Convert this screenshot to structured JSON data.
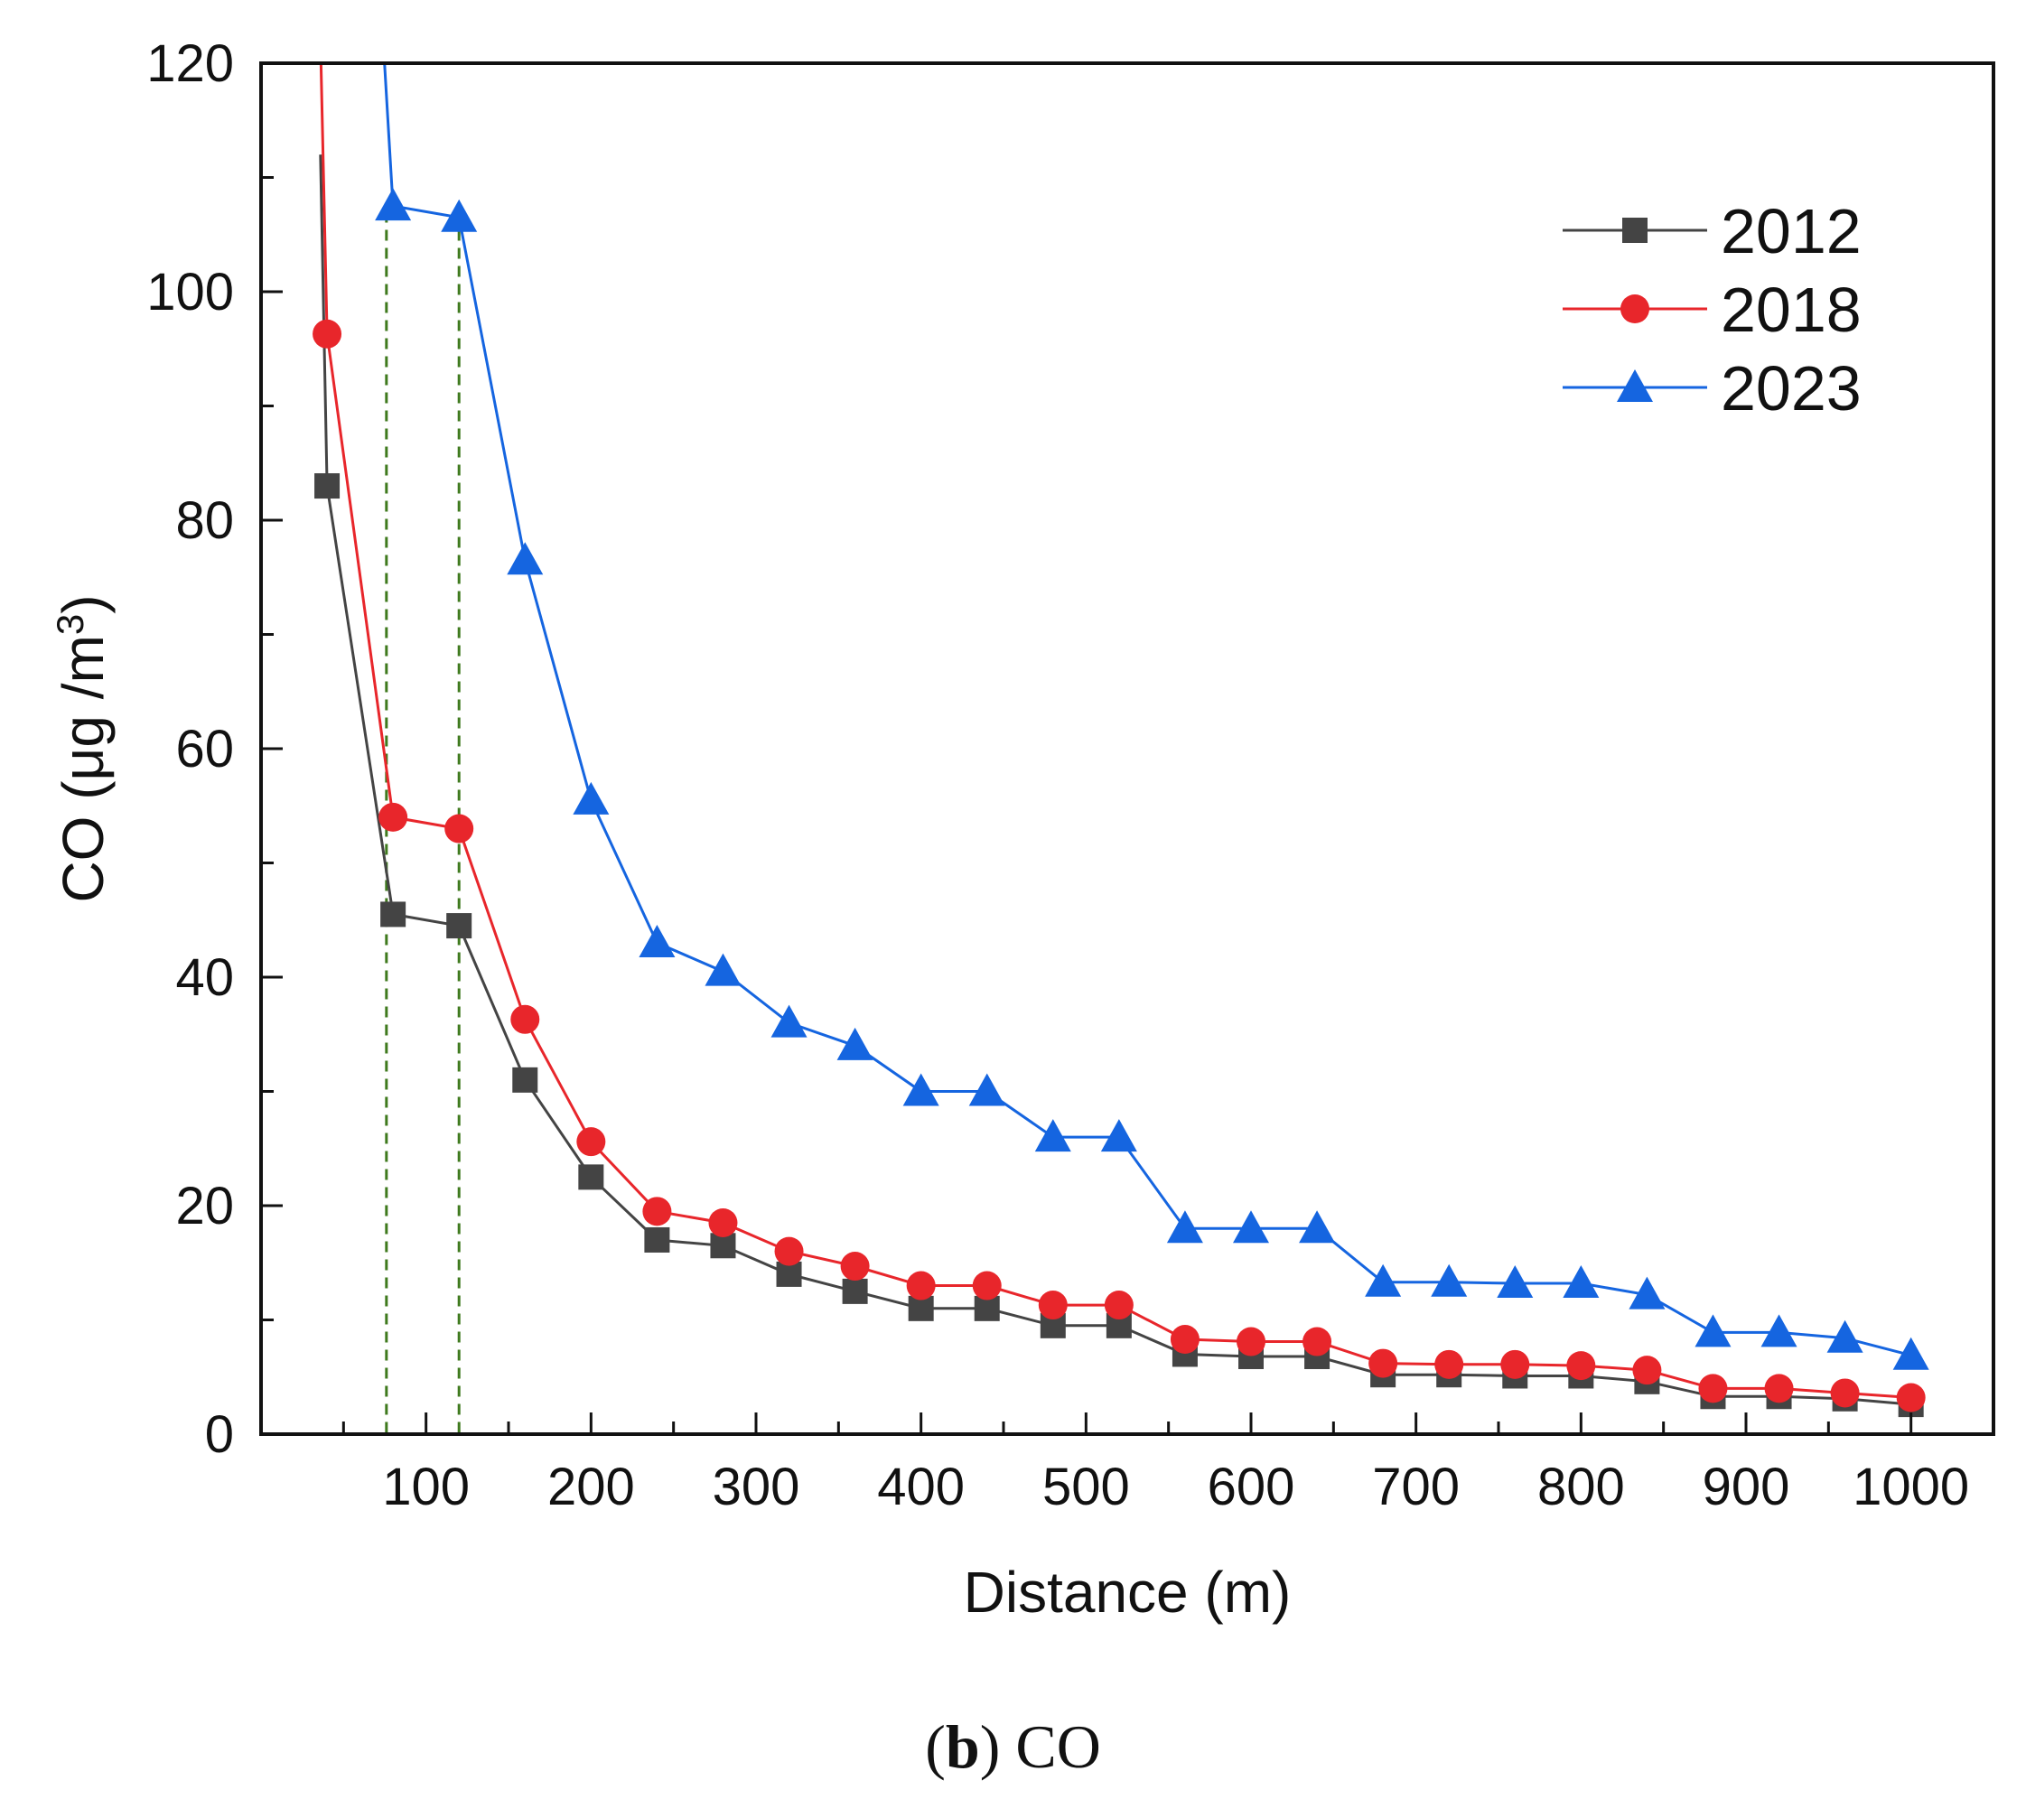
{
  "chart_data": {
    "type": "line",
    "xlabel": "Distance (m)",
    "ylabel_main": "CO (μg /m",
    "ylabel_sup": "3",
    "ylabel_close": ")",
    "xlim": [
      0,
      1050
    ],
    "ylim": [
      0,
      120
    ],
    "xticks": [
      100,
      200,
      300,
      400,
      500,
      600,
      700,
      800,
      900,
      1000
    ],
    "yticks": [
      0,
      20,
      40,
      60,
      80,
      100,
      120
    ],
    "reference_lines_x": [
      76,
      120
    ],
    "legend_position": "top-right",
    "x": [
      40,
      80,
      120,
      160,
      200,
      240,
      280,
      320,
      360,
      400,
      440,
      480,
      520,
      560,
      600,
      640,
      680,
      720,
      760,
      800,
      840,
      880,
      920,
      960,
      1000
    ],
    "series": [
      {
        "name": "2012",
        "color": "#444444",
        "marker": "square",
        "lead": [
          36,
          112
        ],
        "values": [
          83,
          45.5,
          44.5,
          31,
          22.5,
          17,
          16.5,
          14,
          12.5,
          11,
          11,
          9.5,
          9.5,
          7,
          6.8,
          6.8,
          5.2,
          5.2,
          5.1,
          5.1,
          4.6,
          3.3,
          3.3,
          3.1,
          2.6
        ]
      },
      {
        "name": "2018",
        "color": "#e8262b",
        "marker": "circle",
        "lead": [
          36,
          122
        ],
        "values": [
          96.3,
          54,
          53,
          36.3,
          25.6,
          19.5,
          18.5,
          16,
          14.7,
          13,
          13,
          11.3,
          11.3,
          8.3,
          8.1,
          8.1,
          6.2,
          6.1,
          6.1,
          6,
          5.6,
          4,
          4,
          3.6,
          3.2
        ]
      },
      {
        "name": "2023",
        "color": "#1565e0",
        "marker": "triangle",
        "lead": [
          74,
          122
        ],
        "values": [
          null,
          107.5,
          106.5,
          76.5,
          55.5,
          43,
          40.5,
          36,
          34,
          30,
          30,
          26,
          26,
          18,
          18,
          18,
          13.3,
          13.3,
          13.2,
          13.2,
          12.2,
          8.9,
          8.9,
          8.4,
          6.9
        ]
      }
    ]
  },
  "caption": {
    "open": "(",
    "letter": "b",
    "rest": ") CO"
  }
}
